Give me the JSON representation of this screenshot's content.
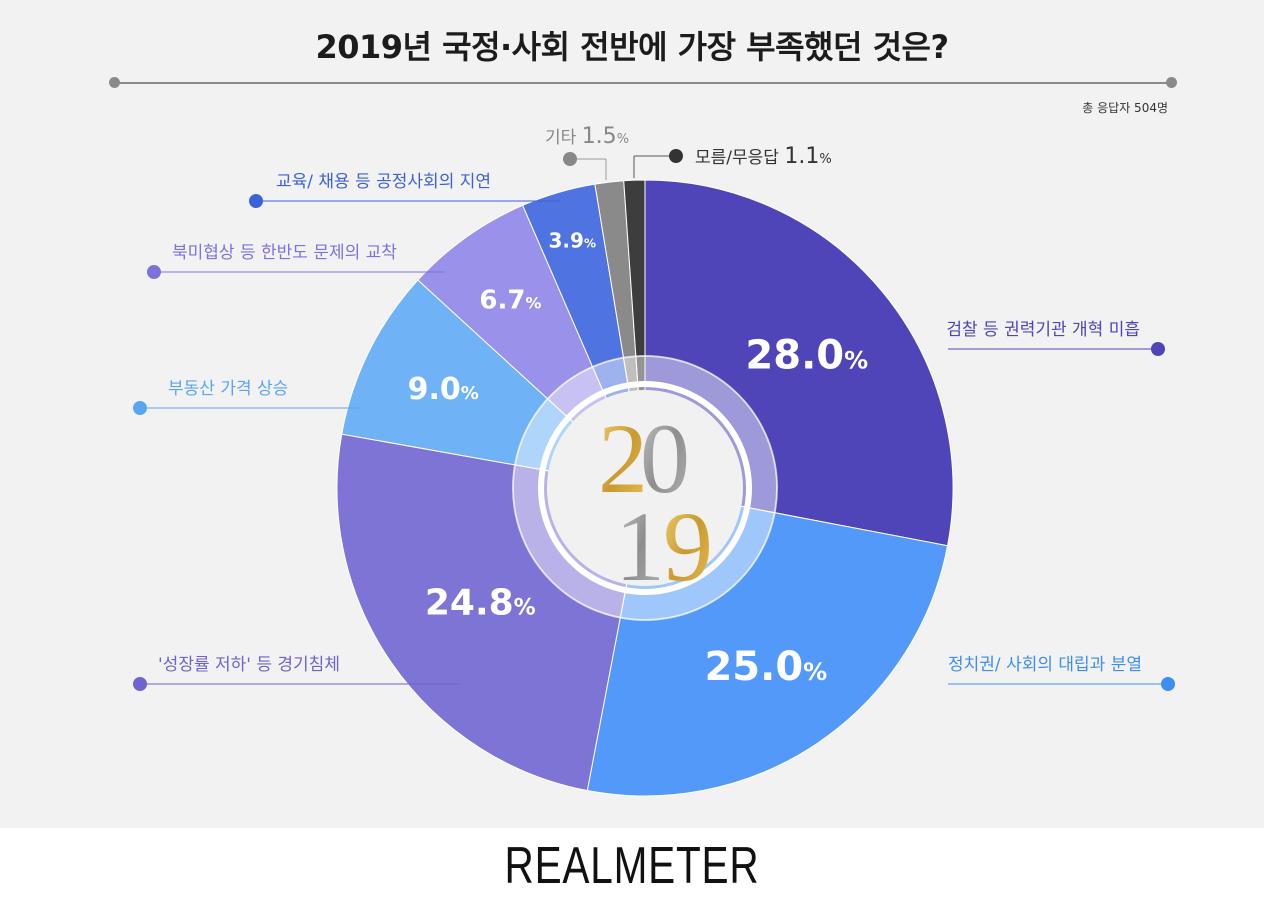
{
  "title": "2019년 국정·사회 전반에 가장 부족했던 것은?",
  "respondents": "총 응답자 504명",
  "brand": "REALMETER",
  "center_year": {
    "top": "20",
    "bottom": "19"
  },
  "chart_data": {
    "type": "pie",
    "title": "2019년 국정·사회 전반에 가장 부족했던 것은?",
    "unit": "%",
    "slices": [
      {
        "label": "검찰 등 권력기관 개혁 미흡",
        "value": 28.0,
        "color": "#4f45b8",
        "labelColor": "#4f45b8"
      },
      {
        "label": "정치권/ 사회의 대립과 분열",
        "value": 25.0,
        "color": "#5299fa",
        "labelColor": "#3e8ef0"
      },
      {
        "label": "'성장률 저하' 등 경기침체",
        "value": 24.8,
        "color": "#7e74d6",
        "labelColor": "#6f63d0"
      },
      {
        "label": "부동산 가격 상승",
        "value": 9.0,
        "color": "#6fb2f6",
        "labelColor": "#5aa5f2"
      },
      {
        "label": "북미협상 등 한반도 문제의 교착",
        "value": 6.7,
        "color": "#9a91ea",
        "labelColor": "#7d72dc"
      },
      {
        "label": "교육/ 채용 등 공정사회의 지연",
        "value": 3.9,
        "color": "#4f73e0",
        "labelColor": "#3c62d8"
      },
      {
        "label": "기타",
        "value": 1.5,
        "color": "#8a8a8a",
        "labelColor": "#888888"
      },
      {
        "label": "모름/무응답",
        "value": 1.1,
        "color": "#3d3d3d",
        "labelColor": "#333333"
      }
    ]
  }
}
